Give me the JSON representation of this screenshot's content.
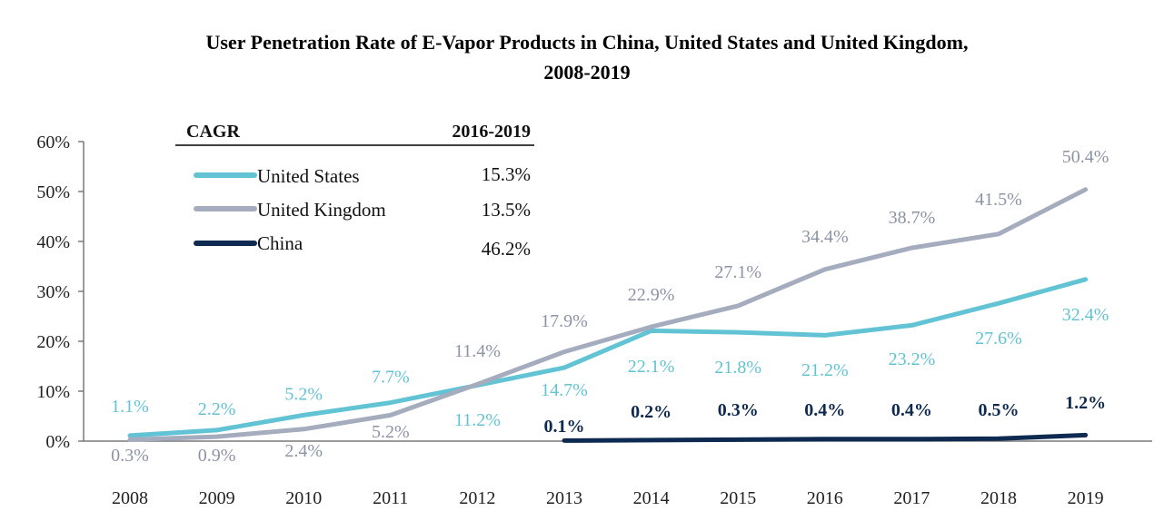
{
  "chart_data": {
    "type": "line",
    "title_line1": "User Penetration Rate of E-Vapor Products in China, United States and United Kingdom,",
    "title_line2": "2008-2019",
    "x": [
      "2008",
      "2009",
      "2010",
      "2011",
      "2012",
      "2013",
      "2014",
      "2015",
      "2016",
      "2017",
      "2018",
      "2019"
    ],
    "ylim": [
      0,
      60
    ],
    "yticks": [
      "0%",
      "10%",
      "20%",
      "30%",
      "40%",
      "50%",
      "60%"
    ],
    "ytick_values": [
      0,
      10,
      20,
      30,
      40,
      50,
      60
    ],
    "grid": false,
    "legend_position": "top-left",
    "legend_header": {
      "left": "CAGR",
      "right": "2016-2019"
    },
    "series": [
      {
        "name": "United States",
        "color": "#62c3d4",
        "cagr": "15.3%",
        "values": [
          1.1,
          2.2,
          5.2,
          7.7,
          11.2,
          14.7,
          22.1,
          21.8,
          21.2,
          23.2,
          27.6,
          32.4
        ],
        "labels": [
          "1.1%",
          "2.2%",
          "5.2%",
          "7.7%",
          "11.2%",
          "14.7%",
          "22.1%",
          "21.8%",
          "21.2%",
          "23.2%",
          "27.6%",
          "32.4%"
        ]
      },
      {
        "name": "United Kingdom",
        "color": "#a4acbd",
        "cagr": "13.5%",
        "values": [
          0.3,
          0.9,
          2.4,
          5.2,
          11.4,
          17.9,
          22.9,
          27.1,
          34.4,
          38.7,
          41.5,
          50.4
        ],
        "labels": [
          "0.3%",
          "0.9%",
          "2.4%",
          "5.2%",
          "11.4%",
          "17.9%",
          "22.9%",
          "27.1%",
          "34.4%",
          "38.7%",
          "41.5%",
          "50.4%"
        ]
      },
      {
        "name": "China",
        "color": "#0f2a50",
        "cagr": "46.2%",
        "start_index": 5,
        "values": [
          null,
          null,
          null,
          null,
          null,
          0.1,
          0.2,
          0.3,
          0.4,
          0.4,
          0.5,
          1.2
        ],
        "labels": [
          null,
          null,
          null,
          null,
          null,
          "0.1%",
          "0.2%",
          "0.3%",
          "0.4%",
          "0.4%",
          "0.5%",
          "1.2%"
        ]
      }
    ]
  }
}
